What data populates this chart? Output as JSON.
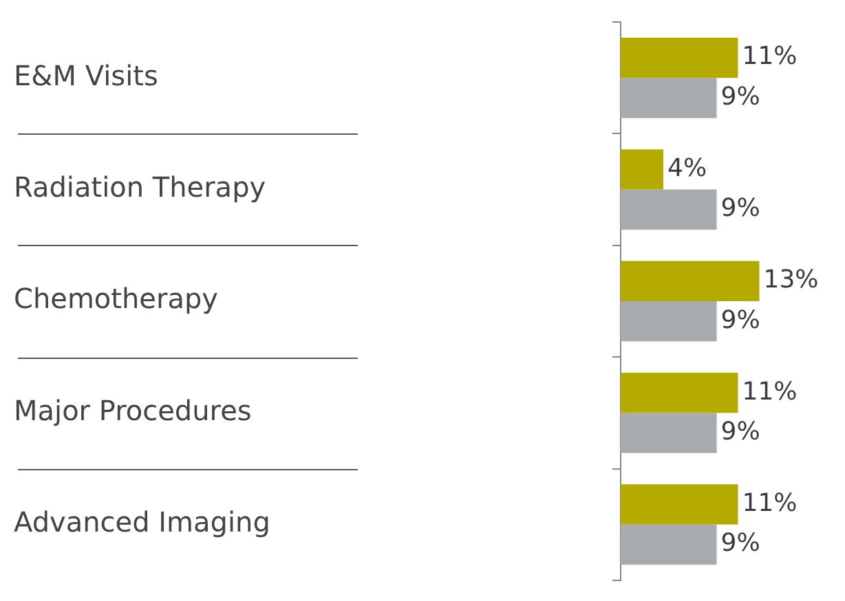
{
  "chart_data": {
    "type": "bar",
    "orientation": "horizontal",
    "categories": [
      "E&M Visits",
      "Radiation Therapy",
      "Chemotherapy",
      "Major Procedures",
      "Advanced Imaging"
    ],
    "series": [
      {
        "color": "#b5aa00",
        "values": [
          11,
          4,
          13,
          11,
          11
        ],
        "value_labels": [
          "11%",
          "4%",
          "13%",
          "11%",
          "11%"
        ]
      },
      {
        "color": "#a8abae",
        "values": [
          9,
          9,
          9,
          9,
          9
        ],
        "value_labels": [
          "9%",
          "9%",
          "9%",
          "9%",
          "9%"
        ]
      }
    ],
    "tick_labels": "y",
    "grid": false,
    "legend": false
  }
}
